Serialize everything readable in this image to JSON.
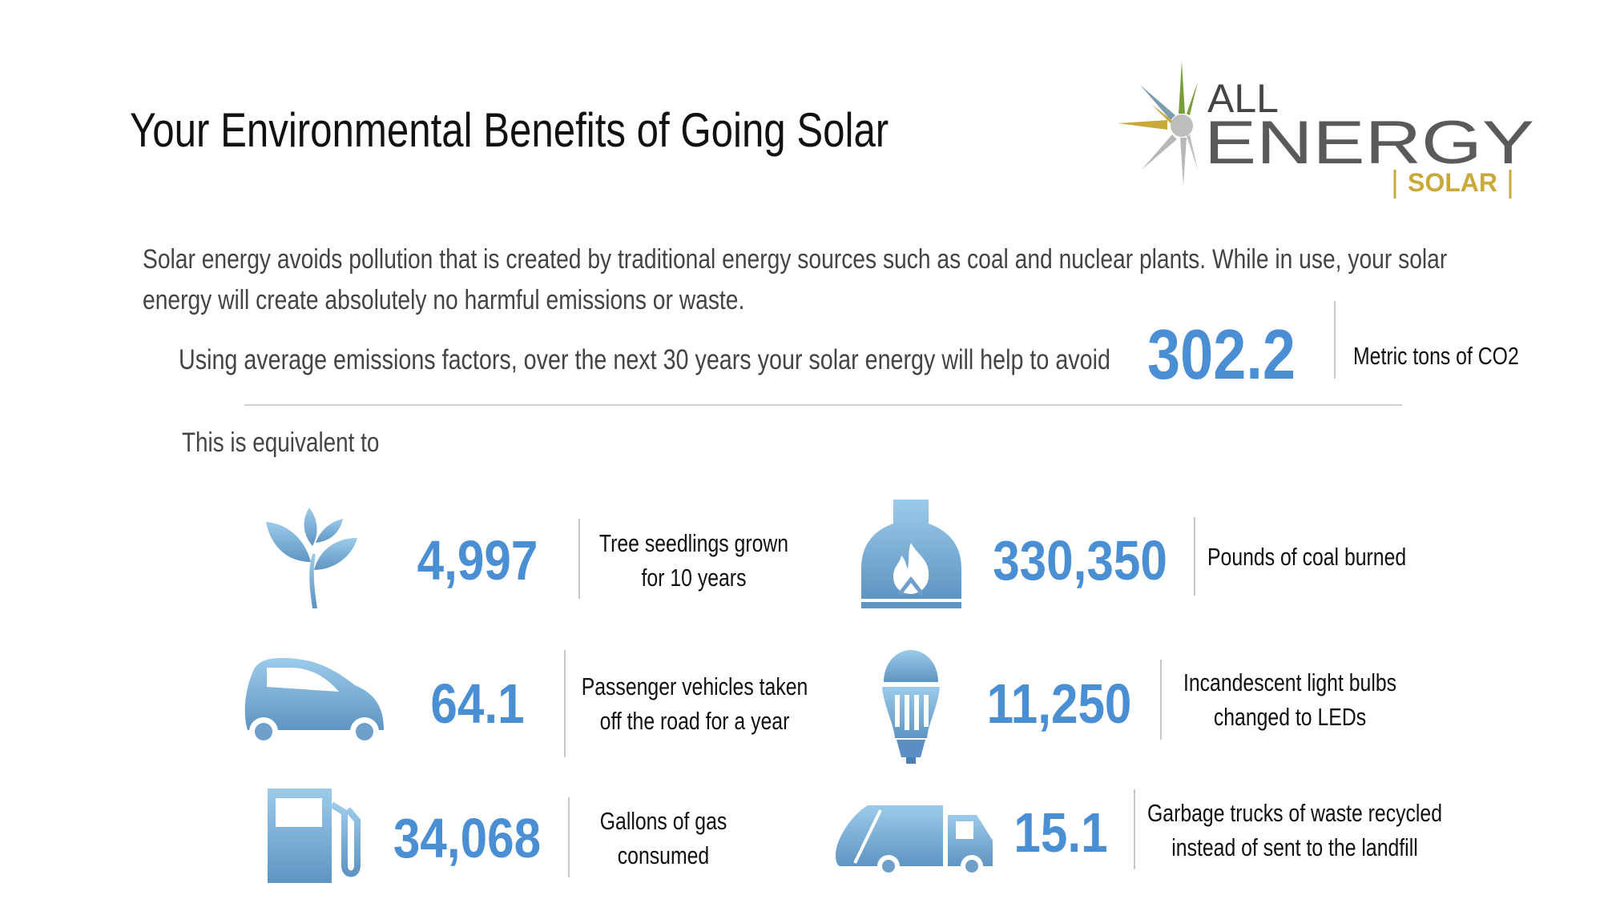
{
  "title": "Your Environmental Benefits of Going Solar",
  "logo": {
    "line1": "ALL",
    "line2": "ENERGY",
    "line3": "SOLAR"
  },
  "intro": {
    "line1": "Solar energy avoids pollution that is created by traditional energy sources such as coal and nuclear plants.  While in use, your solar",
    "line2": "energy will create absolutely no harmful emissions or waste."
  },
  "avoid": {
    "text": "Using average emissions factors, over the next 30 years your solar energy will help to avoid",
    "value": "302.2",
    "unit": "Metric tons of CO2"
  },
  "equivalent_label": "This is equivalent to",
  "benefits": [
    {
      "icon": "tree-seedling-icon",
      "value": "4,997",
      "label1": "Tree seedlings grown",
      "label2": "for 10 years"
    },
    {
      "icon": "coal-furnace-icon",
      "value": "330,350",
      "label1": "Pounds of coal burned",
      "label2": ""
    },
    {
      "icon": "car-icon",
      "value": "64.1",
      "label1": "Passenger vehicles taken",
      "label2": "off the road for a year"
    },
    {
      "icon": "light-bulb-icon",
      "value": "11,250",
      "label1": "Incandescent light bulbs",
      "label2": "changed to LEDs"
    },
    {
      "icon": "gas-pump-icon",
      "value": "34,068",
      "label1": "Gallons of gas",
      "label2": "consumed"
    },
    {
      "icon": "garbage-truck-icon",
      "value": "15.1",
      "label1": "Garbage trucks of waste recycled",
      "label2": "instead of sent to the landfill"
    }
  ],
  "colors": {
    "accent": "#4a8fd4",
    "icon_light": "#93c6e8",
    "icon_dark": "#5f95c3",
    "logo_gold": "#c9a93a",
    "logo_gray": "#555555"
  }
}
